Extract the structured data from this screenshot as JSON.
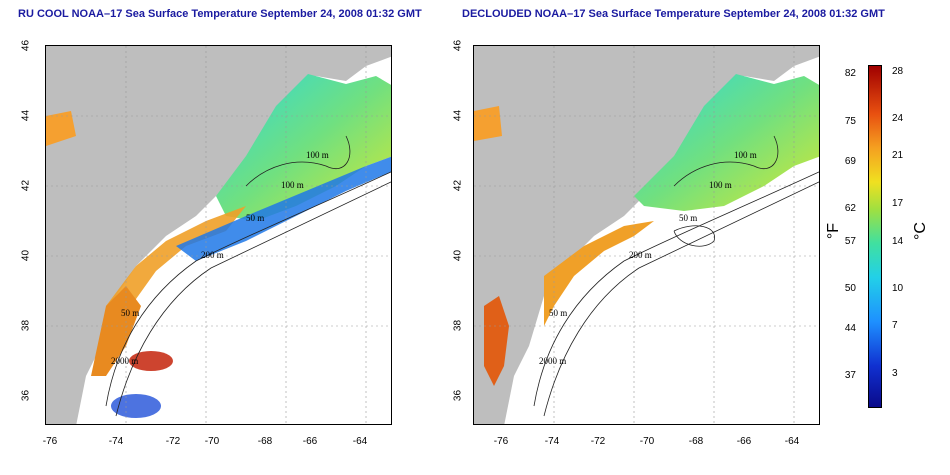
{
  "panels": [
    {
      "title": "RU COOL NOAA–17 Sea Surface Temperature September 24, 2008 01:32 GMT"
    },
    {
      "title": "DECLOUDED NOAA–17 Sea Surface Temperature September 24, 2008 01:32 GMT"
    }
  ],
  "axes": {
    "lat_ticks": [
      "46",
      "44",
      "42",
      "40",
      "38",
      "36"
    ],
    "lon_ticks": [
      "-76",
      "-74",
      "-72",
      "-70",
      "-68",
      "-66",
      "-64"
    ]
  },
  "contour_labels": {
    "left": [
      "100 m",
      "100 m",
      "50 m",
      "200 m",
      "50 m",
      "2000 m"
    ],
    "right": [
      "100 m",
      "100 m",
      "50 m",
      "200 m",
      "50 m",
      "2000 m"
    ]
  },
  "colorbar": {
    "f_unit": "°F",
    "c_unit": "°C",
    "f_ticks": [
      "82",
      "75",
      "69",
      "62",
      "57",
      "50",
      "44",
      "37"
    ],
    "c_ticks": [
      "28",
      "24",
      "21",
      "17",
      "14",
      "10",
      "7",
      "3"
    ]
  },
  "colors": {
    "land": "#bebebe",
    "cloud": "#ffffff",
    "title": "#1a1aa0"
  }
}
